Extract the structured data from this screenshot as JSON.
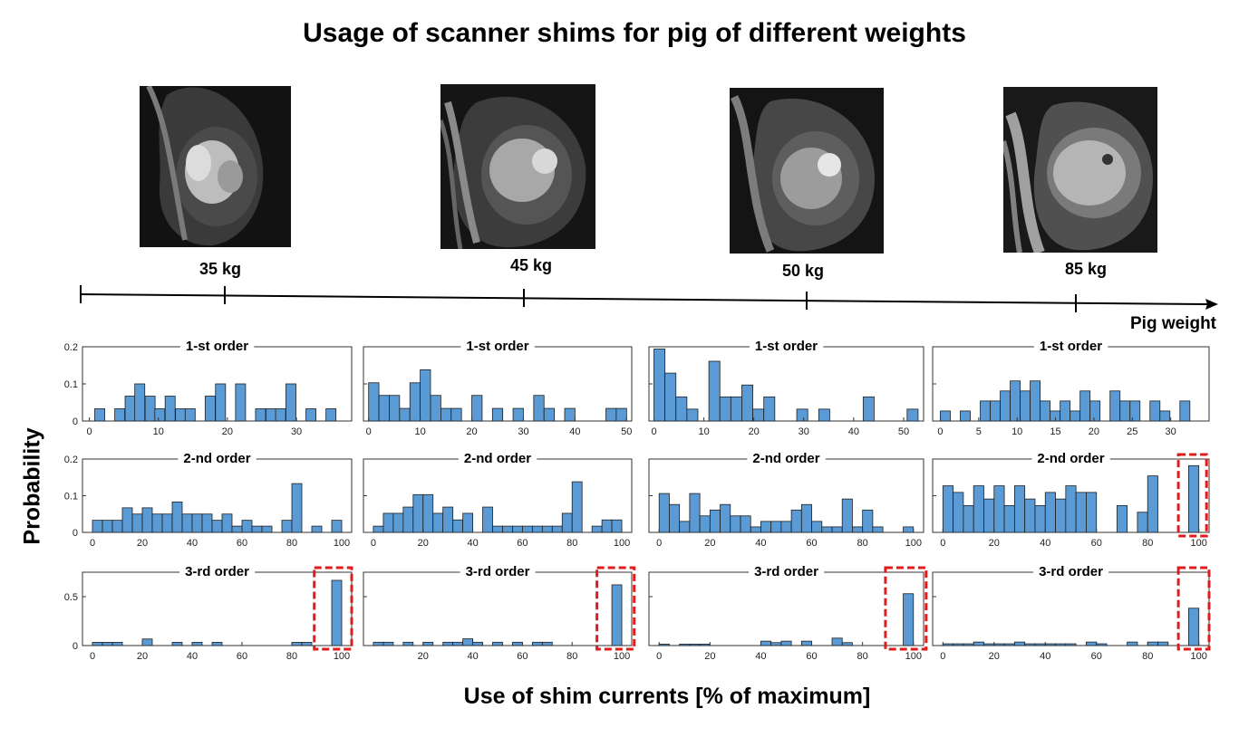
{
  "title": "Usage of scanner shims for pig of different weights",
  "images": [
    {
      "label": "35 kg",
      "kind": "cardiac-mri-35kg"
    },
    {
      "label": "45 kg",
      "kind": "cardiac-mri-45kg"
    },
    {
      "label": "50 kg",
      "kind": "cardiac-mri-50kg"
    },
    {
      "label": "85 kg",
      "kind": "cardiac-mri-85kg"
    }
  ],
  "axis_label": "Pig weight",
  "ylabel": "Probability",
  "xlabel": "Use of shim currents [% of maximum]",
  "colors": {
    "bar": "#5b9bd5",
    "highlight": "#e01b1b",
    "axis": "#000000"
  },
  "chart_data": [
    {
      "type": "bar",
      "pig": "35 kg",
      "title": "1-st order",
      "xlim": [
        -1,
        38
      ],
      "ylim": [
        0,
        0.2
      ],
      "xticks": [
        0,
        10,
        20,
        30
      ],
      "yticks": [
        0,
        0.1,
        0.2
      ],
      "ytick_labels": [
        "0",
        "0.1",
        "0.2"
      ],
      "bin_width": 1.45,
      "x": [
        1.5,
        4.4,
        5.9,
        7.3,
        8.8,
        10.2,
        11.7,
        13.2,
        14.6,
        17.5,
        19.0,
        21.9,
        24.8,
        26.3,
        27.7,
        29.2,
        32.1,
        35.0
      ],
      "values": [
        0.033,
        0.033,
        0.067,
        0.1,
        0.067,
        0.033,
        0.067,
        0.033,
        0.033,
        0.067,
        0.1,
        0.1,
        0.033,
        0.033,
        0.033,
        0.1,
        0.033,
        0.033
      ]
    },
    {
      "type": "bar",
      "pig": "45 kg",
      "title": "1-st order",
      "xlim": [
        -1,
        51
      ],
      "ylim": [
        0,
        0.2
      ],
      "xticks": [
        0,
        10,
        20,
        30,
        40,
        50
      ],
      "yticks": [
        0,
        0.1,
        0.2
      ],
      "ytick_labels": [
        "",
        "",
        ""
      ],
      "bin_width": 2,
      "x": [
        1,
        3,
        5,
        7,
        9,
        11,
        13,
        15,
        17,
        21,
        25,
        29,
        33,
        35,
        39,
        47,
        49
      ],
      "values": [
        0.103,
        0.069,
        0.069,
        0.034,
        0.103,
        0.138,
        0.069,
        0.034,
        0.034,
        0.069,
        0.034,
        0.034,
        0.069,
        0.034,
        0.034,
        0.034,
        0.034
      ]
    },
    {
      "type": "bar",
      "pig": "50 kg",
      "title": "1-st order",
      "xlim": [
        -1,
        54
      ],
      "ylim": [
        0,
        0.2
      ],
      "xticks": [
        0,
        10,
        20,
        30,
        40,
        50
      ],
      "yticks": [
        0,
        0.1,
        0.2
      ],
      "ytick_labels": [
        "",
        "",
        ""
      ],
      "bin_width": 2.2,
      "x": [
        1.1,
        3.3,
        5.5,
        7.7,
        12.1,
        14.3,
        16.5,
        18.7,
        20.9,
        23.1,
        29.7,
        34.1,
        43.0,
        51.8
      ],
      "values": [
        0.194,
        0.129,
        0.065,
        0.032,
        0.161,
        0.065,
        0.065,
        0.097,
        0.032,
        0.065,
        0.032,
        0.032,
        0.065,
        0.032
      ]
    },
    {
      "type": "bar",
      "pig": "85 kg",
      "title": "1-st order",
      "xlim": [
        -1,
        35
      ],
      "ylim": [
        0,
        0.2
      ],
      "xticks": [
        0,
        5,
        10,
        15,
        20,
        25,
        30
      ],
      "yticks": [
        0,
        0.1,
        0.2
      ],
      "ytick_labels": [
        "",
        "",
        ""
      ],
      "bin_width": 1.3,
      "x": [
        0.65,
        3.25,
        5.85,
        7.15,
        8.45,
        9.75,
        11.05,
        12.35,
        13.65,
        14.95,
        16.25,
        17.55,
        18.85,
        20.15,
        22.75,
        24.05,
        25.35,
        27.95,
        29.25,
        31.85
      ],
      "values": [
        0.027,
        0.027,
        0.054,
        0.054,
        0.081,
        0.108,
        0.081,
        0.108,
        0.054,
        0.027,
        0.054,
        0.027,
        0.081,
        0.054,
        0.081,
        0.054,
        0.054,
        0.054,
        0.027,
        0.054
      ]
    },
    {
      "type": "bar",
      "pig": "35 kg",
      "title": "2-nd order",
      "xlim": [
        -4,
        104
      ],
      "ylim": [
        0,
        0.2
      ],
      "xticks": [
        0,
        20,
        40,
        60,
        80,
        100
      ],
      "yticks": [
        0,
        0.1,
        0.2
      ],
      "ytick_labels": [
        "0",
        "0.1",
        "0.2"
      ],
      "bin_width": 4,
      "x": [
        2,
        6,
        10,
        14,
        18,
        22,
        26,
        30,
        34,
        38,
        42,
        46,
        50,
        54,
        58,
        62,
        66,
        70,
        78,
        82,
        90,
        98
      ],
      "values": [
        0.033,
        0.033,
        0.033,
        0.067,
        0.05,
        0.067,
        0.05,
        0.05,
        0.083,
        0.05,
        0.05,
        0.05,
        0.033,
        0.05,
        0.017,
        0.033,
        0.017,
        0.017,
        0.033,
        0.133,
        0.017,
        0.033
      ]
    },
    {
      "type": "bar",
      "pig": "45 kg",
      "title": "2-nd order",
      "xlim": [
        -4,
        104
      ],
      "ylim": [
        0,
        0.2
      ],
      "xticks": [
        0,
        20,
        40,
        60,
        80,
        100
      ],
      "yticks": [
        0,
        0.1,
        0.2
      ],
      "ytick_labels": [
        "",
        "",
        ""
      ],
      "bin_width": 4,
      "x": [
        2,
        6,
        10,
        14,
        18,
        22,
        26,
        30,
        34,
        38,
        46,
        50,
        54,
        58,
        62,
        66,
        70,
        74,
        78,
        82,
        90,
        94,
        98
      ],
      "values": [
        0.017,
        0.052,
        0.052,
        0.069,
        0.103,
        0.103,
        0.052,
        0.069,
        0.034,
        0.052,
        0.069,
        0.017,
        0.017,
        0.017,
        0.017,
        0.017,
        0.017,
        0.017,
        0.052,
        0.138,
        0.017,
        0.034,
        0.034
      ]
    },
    {
      "type": "bar",
      "pig": "50 kg",
      "title": "2-nd order",
      "xlim": [
        -4,
        104
      ],
      "ylim": [
        0,
        0.2
      ],
      "xticks": [
        0,
        20,
        40,
        60,
        80,
        100
      ],
      "yticks": [
        0,
        0.1,
        0.2
      ],
      "ytick_labels": [
        "",
        "",
        ""
      ],
      "bin_width": 4,
      "x": [
        2,
        6,
        10,
        14,
        18,
        22,
        26,
        30,
        34,
        38,
        42,
        46,
        50,
        54,
        58,
        62,
        66,
        70,
        74,
        78,
        82,
        86,
        98
      ],
      "values": [
        0.106,
        0.076,
        0.03,
        0.106,
        0.045,
        0.061,
        0.076,
        0.045,
        0.045,
        0.015,
        0.03,
        0.03,
        0.03,
        0.061,
        0.076,
        0.03,
        0.015,
        0.015,
        0.091,
        0.015,
        0.061,
        0.015,
        0.015
      ]
    },
    {
      "type": "bar",
      "pig": "85 kg",
      "title": "2-nd order",
      "xlim": [
        -4,
        104
      ],
      "ylim": [
        0,
        0.2
      ],
      "xticks": [
        0,
        20,
        40,
        60,
        80,
        100
      ],
      "yticks": [
        0,
        0.1,
        0.2
      ],
      "ytick_labels": [
        "",
        "",
        ""
      ],
      "bin_width": 4,
      "x": [
        2,
        6,
        10,
        14,
        18,
        22,
        26,
        30,
        34,
        38,
        42,
        46,
        50,
        54,
        58,
        70,
        78,
        82,
        98
      ],
      "values": [
        0.127,
        0.109,
        0.073,
        0.127,
        0.091,
        0.127,
        0.073,
        0.127,
        0.091,
        0.073,
        0.109,
        0.091,
        0.127,
        0.109,
        0.109,
        0.073,
        0.055,
        0.154,
        0.182
      ],
      "highlight_range": [
        92,
        103
      ]
    },
    {
      "type": "bar",
      "pig": "35 kg",
      "title": "3-rd order",
      "xlim": [
        -4,
        104
      ],
      "ylim": [
        0,
        0.75
      ],
      "xticks": [
        0,
        20,
        40,
        60,
        80,
        100
      ],
      "yticks": [
        0,
        0.5
      ],
      "ytick_labels": [
        "0",
        "0.5"
      ],
      "bin_width": 4,
      "x": [
        2,
        6,
        10,
        22,
        34,
        42,
        50,
        82,
        86,
        98
      ],
      "values": [
        0.033,
        0.033,
        0.033,
        0.067,
        0.033,
        0.033,
        0.033,
        0.033,
        0.033,
        0.667
      ],
      "highlight_range": [
        89,
        104
      ]
    },
    {
      "type": "bar",
      "pig": "45 kg",
      "title": "3-rd order",
      "xlim": [
        -4,
        104
      ],
      "ylim": [
        0,
        0.75
      ],
      "xticks": [
        20,
        40,
        60,
        80,
        100
      ],
      "yticks": [
        0,
        0.5
      ],
      "ytick_labels": [
        "",
        ""
      ],
      "bin_width": 4,
      "x": [
        2,
        6,
        14,
        22,
        30,
        34,
        38,
        42,
        50,
        58,
        66,
        70,
        98
      ],
      "values": [
        0.034,
        0.034,
        0.034,
        0.034,
        0.034,
        0.034,
        0.069,
        0.034,
        0.034,
        0.034,
        0.034,
        0.034,
        0.621
      ],
      "highlight_range": [
        90,
        105
      ]
    },
    {
      "type": "bar",
      "pig": "50 kg",
      "title": "3-rd order",
      "xlim": [
        -4,
        104
      ],
      "ylim": [
        0,
        0.75
      ],
      "xticks": [
        0,
        20,
        40,
        60,
        80,
        100
      ],
      "yticks": [
        0,
        0.5
      ],
      "ytick_labels": [
        "",
        ""
      ],
      "bin_width": 4,
      "x": [
        2,
        10,
        14,
        18,
        42,
        46,
        50,
        58,
        70,
        74,
        98
      ],
      "values": [
        0.015,
        0.015,
        0.015,
        0.015,
        0.045,
        0.03,
        0.045,
        0.045,
        0.076,
        0.03,
        0.53
      ],
      "highlight_range": [
        89,
        105
      ]
    },
    {
      "type": "bar",
      "pig": "85 kg",
      "title": "3-rd order",
      "xlim": [
        -4,
        104
      ],
      "ylim": [
        0,
        0.75
      ],
      "xticks": [
        0,
        20,
        40,
        60,
        80,
        100
      ],
      "yticks": [
        0,
        0.5
      ],
      "ytick_labels": [
        "",
        ""
      ],
      "bin_width": 4,
      "x": [
        2,
        6,
        10,
        14,
        18,
        22,
        26,
        30,
        34,
        38,
        42,
        46,
        50,
        58,
        62,
        74,
        82,
        86,
        98
      ],
      "values": [
        0.018,
        0.018,
        0.018,
        0.036,
        0.018,
        0.018,
        0.018,
        0.036,
        0.018,
        0.018,
        0.018,
        0.018,
        0.018,
        0.036,
        0.018,
        0.036,
        0.036,
        0.036,
        0.382
      ],
      "highlight_range": [
        92,
        104
      ]
    }
  ]
}
